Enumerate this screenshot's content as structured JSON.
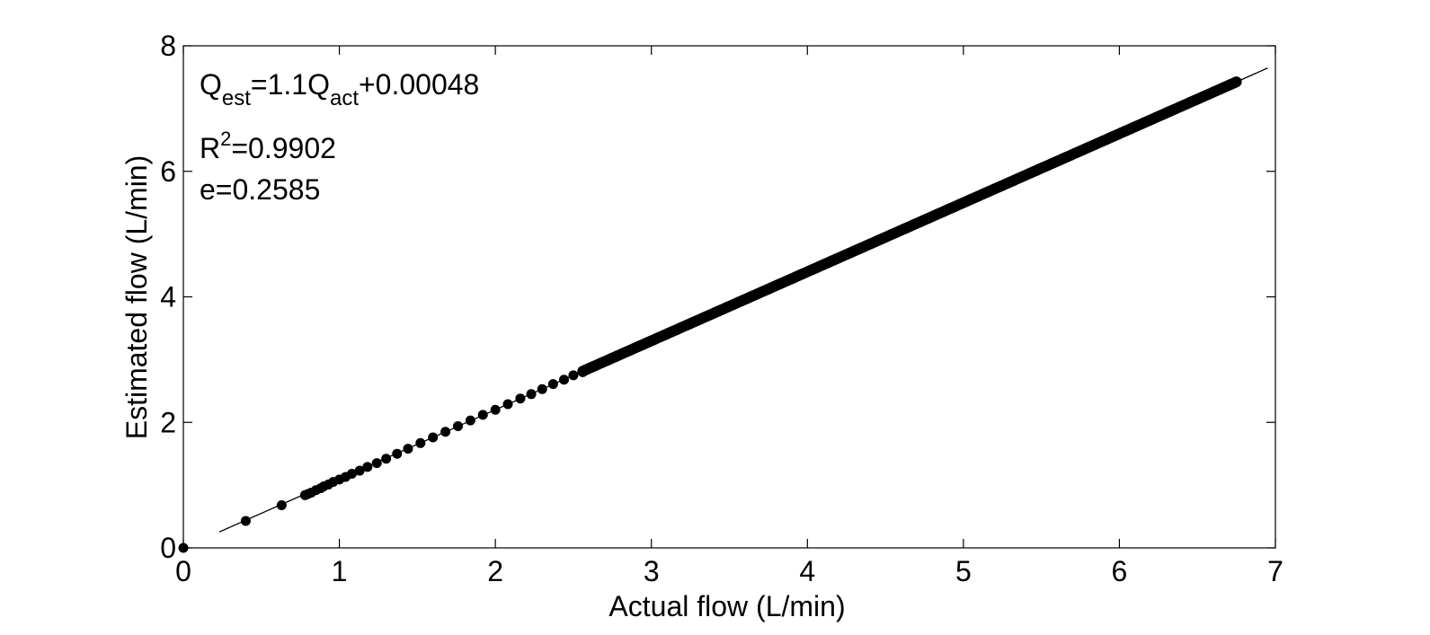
{
  "chart_data": {
    "type": "scatter",
    "title": "",
    "xlabel": "Actual flow (L/min)",
    "ylabel": "Estimated flow (L/min)",
    "xlim": [
      0,
      7
    ],
    "ylim": [
      0,
      8
    ],
    "xticks": [
      0,
      1,
      2,
      3,
      4,
      5,
      6,
      7
    ],
    "yticks": [
      0,
      2,
      4,
      6,
      8
    ],
    "grid": false,
    "legend": "none",
    "box": true,
    "annotations": {
      "equation": {
        "q1": "Q",
        "sub1": "est",
        "mid": "=1.1Q",
        "sub2": "act",
        "tail": "+0.00048"
      },
      "r2": {
        "prefix": "R",
        "sup": "2",
        "value": "=0.9902"
      },
      "error": "e=0.2585"
    },
    "fit_line": {
      "slope": 1.1,
      "intercept": 0.00048,
      "x_range": [
        0.23,
        6.95
      ]
    },
    "series": [
      {
        "marker": "circle",
        "color": "#000000",
        "x": [
          0,
          0.4,
          0.63,
          0.78,
          0.8,
          0.82,
          0.85,
          0.88,
          0.9,
          0.93,
          0.96,
          1.0,
          1.04,
          1.08,
          1.13,
          1.18,
          1.24,
          1.3,
          1.37,
          1.44,
          1.52,
          1.6,
          1.68,
          1.76,
          1.84,
          1.92,
          2.0,
          2.08,
          2.16,
          2.23,
          2.3,
          2.37,
          2.44,
          2.5,
          2.56
        ],
        "y": [
          0,
          0.43,
          0.68,
          0.84,
          0.86,
          0.88,
          0.92,
          0.95,
          0.98,
          1.01,
          1.05,
          1.09,
          1.13,
          1.18,
          1.23,
          1.29,
          1.35,
          1.42,
          1.5,
          1.58,
          1.67,
          1.76,
          1.85,
          1.94,
          2.03,
          2.12,
          2.2,
          2.29,
          2.38,
          2.45,
          2.53,
          2.61,
          2.68,
          2.75,
          2.8
        ]
      },
      {
        "marker": "circle-dense",
        "color": "#000000",
        "x_range": [
          2.56,
          6.75
        ],
        "slope": 1.1,
        "intercept": 0.0
      }
    ]
  }
}
